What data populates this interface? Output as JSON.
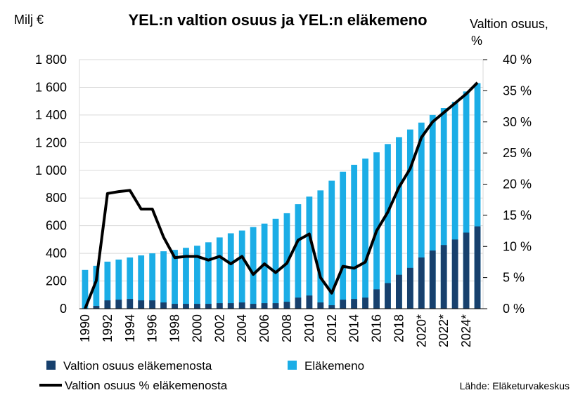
{
  "chart_data": {
    "type": "bar",
    "title": "YEL:n valtion osuus ja YEL:n eläkemeno",
    "ylabel_left": "Milj €",
    "ylabel_right_line1": "Valtion osuus,",
    "ylabel_right_line2": "%",
    "ylim_left": [
      0,
      1800
    ],
    "ylim_right": [
      0,
      40
    ],
    "left_ticks": [
      "0",
      "200",
      "400",
      "600",
      "800",
      "1 000",
      "1 200",
      "1 400",
      "1 600",
      "1 800"
    ],
    "right_ticks": [
      "0 %",
      "5 %",
      "10 %",
      "15 %",
      "20 %",
      "25 %",
      "30 %",
      "35 %",
      "40 %"
    ],
    "categories": [
      "1990",
      "1991",
      "1992",
      "1993",
      "1994",
      "1995",
      "1996",
      "1997",
      "1998",
      "1999",
      "2000",
      "2001",
      "2002",
      "2003",
      "2004",
      "2005",
      "2006",
      "2007",
      "2008",
      "2009",
      "2010",
      "2011",
      "2012",
      "2013",
      "2014",
      "2015",
      "2016",
      "2017",
      "2018",
      "2019",
      "2020*",
      "2021*",
      "2022*",
      "2023*",
      "2024*",
      "2025*"
    ],
    "x_tick_labels": [
      "1990",
      "1992",
      "1994",
      "1996",
      "1998",
      "2000",
      "2002",
      "2004",
      "2006",
      "2008",
      "2010",
      "2012",
      "2014",
      "2016",
      "2018",
      "2020*",
      "2022*",
      "2024*"
    ],
    "grid": true,
    "legend_position": "bottom",
    "series": [
      {
        "name": "Eläkemeno",
        "kind": "bar",
        "color": "#1BADE6",
        "values": [
          280,
          310,
          340,
          355,
          370,
          385,
          400,
          415,
          425,
          440,
          455,
          480,
          515,
          545,
          565,
          590,
          615,
          650,
          690,
          755,
          810,
          855,
          925,
          990,
          1040,
          1085,
          1130,
          1190,
          1240,
          1295,
          1345,
          1400,
          1450,
          1495,
          1570,
          1630
        ]
      },
      {
        "name": "Valtion osuus eläkemenosta",
        "kind": "bar",
        "color": "#17406D",
        "values": [
          0,
          20,
          60,
          65,
          70,
          60,
          60,
          45,
          35,
          35,
          35,
          35,
          40,
          40,
          45,
          35,
          40,
          40,
          50,
          80,
          95,
          45,
          25,
          65,
          70,
          80,
          140,
          185,
          245,
          295,
          370,
          420,
          460,
          500,
          550,
          595
        ]
      },
      {
        "name": "Valtion osuus % eläkemenosta",
        "kind": "line",
        "axis": "right",
        "color": "#000000",
        "values": [
          0,
          4.5,
          18.5,
          18.8,
          19.0,
          16.0,
          16.0,
          11.5,
          8.2,
          8.4,
          8.4,
          7.8,
          8.4,
          7.2,
          8.4,
          5.5,
          7.2,
          5.8,
          7.3,
          11.0,
          12.0,
          5.0,
          2.5,
          6.8,
          6.5,
          7.5,
          12.5,
          15.5,
          19.5,
          22.5,
          27.5,
          30.0,
          31.5,
          33.0,
          34.5,
          36.3
        ]
      }
    ],
    "source": "Lähde: Eläketurvakeskus"
  }
}
